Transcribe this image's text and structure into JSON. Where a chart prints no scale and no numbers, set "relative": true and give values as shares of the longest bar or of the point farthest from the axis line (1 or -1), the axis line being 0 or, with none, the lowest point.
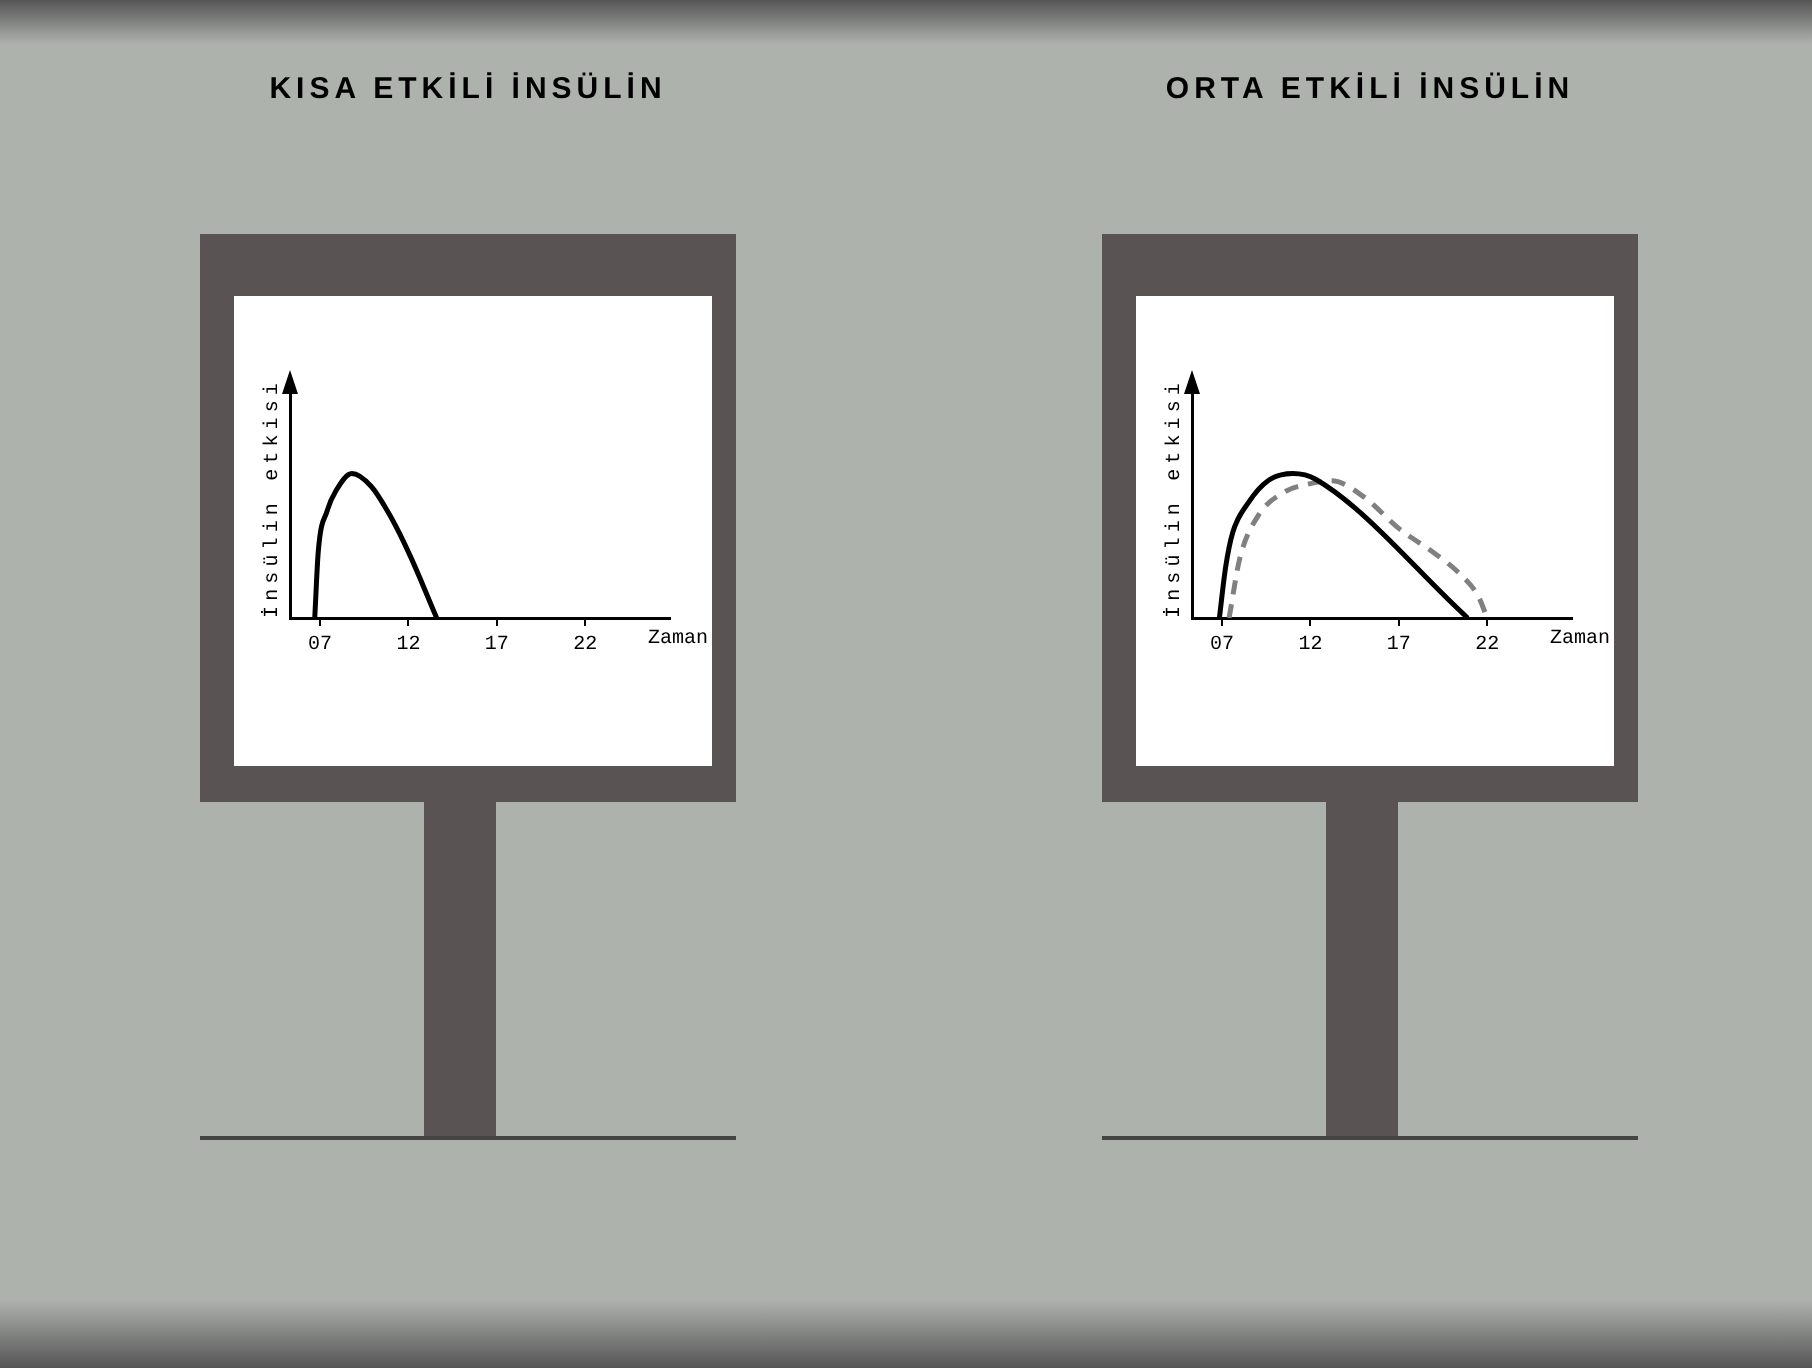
{
  "chart_data": [
    {
      "type": "line",
      "title": "KISA ETKİLİ İNSÜLİN",
      "xlabel": "Zaman",
      "ylabel": "İnsülin etkisi",
      "relative": true,
      "xlim": [
        5.3,
        26.8
      ],
      "xticks": [
        {
          "value": 7,
          "label": "07"
        },
        12,
        17,
        22
      ],
      "series": [
        {
          "color": "#000000",
          "line_style": "solid",
          "x": [
            6.7,
            6.9,
            7.4,
            7.9,
            8.8,
            9.9,
            11.0,
            12.1,
            13.6
          ],
          "values": [
            0,
            0.46,
            0.74,
            0.88,
            1,
            0.91,
            0.7,
            0.43,
            0
          ]
        }
      ]
    },
    {
      "type": "line",
      "title": "ORTA ETKİLİ İNSÜLİN",
      "xlabel": "Zaman",
      "ylabel": "İnsülin etkisi",
      "relative": true,
      "xlim": [
        5.3,
        26.8
      ],
      "xticks": [
        {
          "value": 7,
          "label": "07"
        },
        12,
        17,
        22
      ],
      "series": [
        {
          "color": "#000000",
          "line_style": "solid",
          "x": [
            6.85,
            7.2,
            7.6,
            8.5,
            9.6,
            11.0,
            12.3,
            20.9
          ],
          "values": [
            0,
            0.35,
            0.59,
            0.8,
            0.95,
            1,
            0.96,
            0
          ]
        },
        {
          "color": "#808080",
          "line_style": "dashed",
          "x": [
            7.4,
            8.0,
            9.0,
            10.5,
            12.0,
            13.2,
            15.0,
            17.0,
            19.0,
            20.5,
            21.5,
            22.0
          ],
          "values": [
            0,
            0.41,
            0.7,
            0.87,
            0.93,
            0.95,
            0.84,
            0.62,
            0.45,
            0.3,
            0.15,
            0
          ]
        }
      ]
    }
  ]
}
